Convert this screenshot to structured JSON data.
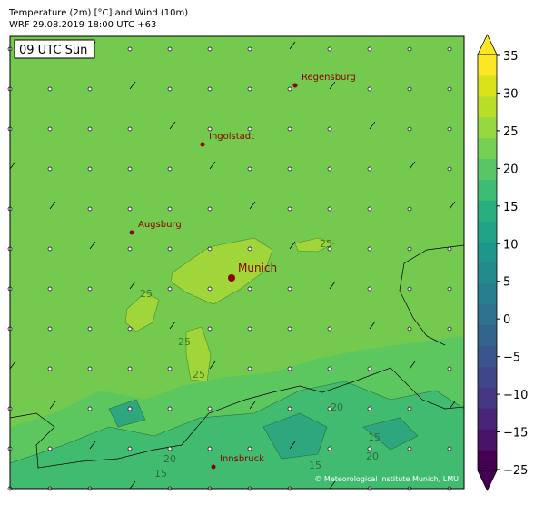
{
  "header": {
    "title": "Temperature (2m) [°C] and Wind (10m)",
    "subtitle": "WRF 29.08.2019 18:00 UTC +63"
  },
  "map": {
    "time_label": "09 UTC Sun",
    "cities": [
      "Regensburg",
      "Ingolstadt",
      "Augsburg",
      "Munich",
      "Innsbruck"
    ],
    "contour_labels": [
      "25",
      "25",
      "25",
      "25",
      "20",
      "20",
      "20",
      "15",
      "15",
      "15"
    ],
    "credit": "© Meteorological Institute Munich, LMU"
  },
  "colorbar": {
    "ticks": [
      35,
      30,
      25,
      20,
      15,
      10,
      5,
      0,
      {
        "value": -5,
        "label": "−5"
      },
      {
        "value": -10,
        "label": "−10"
      },
      {
        "value": -15,
        "label": "−15"
      },
      {
        "value": -25,
        "label": "−25"
      }
    ],
    "colors": [
      "#440154",
      "#481467",
      "#482576",
      "#453781",
      "#3f4788",
      "#39558c",
      "#32648e",
      "#2d718e",
      "#287d8e",
      "#238a8d",
      "#1f968b",
      "#20a386",
      "#29af7f",
      "#3dbc74",
      "#56c667",
      "#75d054",
      "#95d840",
      "#b8de29",
      "#dae319",
      "#fde725"
    ]
  }
}
